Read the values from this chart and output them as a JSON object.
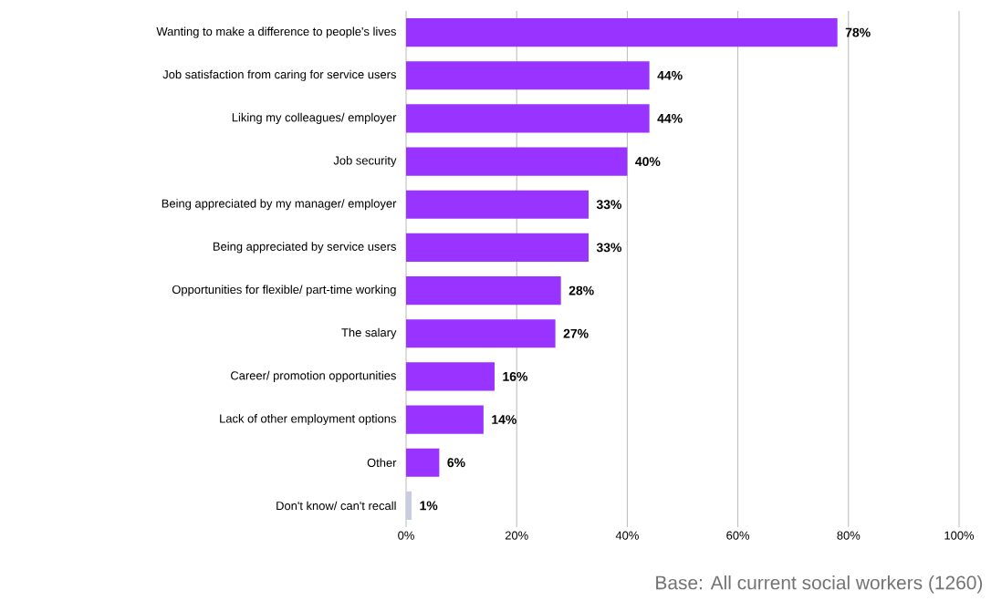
{
  "chart_data": {
    "type": "bar",
    "orientation": "horizontal",
    "categories": [
      "Wanting to make a difference to people's lives",
      "Job satisfaction from caring for service users",
      "Liking my colleagues/ employer",
      "Job security",
      "Being appreciated by my manager/ employer",
      "Being appreciated by service users",
      "Opportunities for flexible/ part-time working",
      "The salary",
      "Career/ promotion opportunities",
      "Lack of other employment options",
      "Other",
      "Don't know/ can't recall"
    ],
    "values": [
      78,
      44,
      44,
      40,
      33,
      33,
      28,
      27,
      16,
      14,
      6,
      1
    ],
    "colors": [
      "#9933ff",
      "#9933ff",
      "#9933ff",
      "#9933ff",
      "#9933ff",
      "#9933ff",
      "#9933ff",
      "#9933ff",
      "#9933ff",
      "#9933ff",
      "#9933ff",
      "#c9cedf"
    ],
    "value_labels": [
      "78%",
      "44%",
      "44%",
      "40%",
      "33%",
      "33%",
      "28%",
      "27%",
      "16%",
      "14%",
      "6%",
      "1%"
    ],
    "xlim": [
      0,
      100
    ],
    "xticks": [
      {
        "value": 0,
        "label": "0%"
      },
      {
        "value": 20,
        "label": "20%"
      },
      {
        "value": 40,
        "label": "40%"
      },
      {
        "value": 60,
        "label": "60%"
      },
      {
        "value": 80,
        "label": "80%"
      },
      {
        "value": 100,
        "label": "100%"
      }
    ],
    "grid": "x",
    "annotations": [
      "Base: All current social workers (1260)"
    ]
  }
}
